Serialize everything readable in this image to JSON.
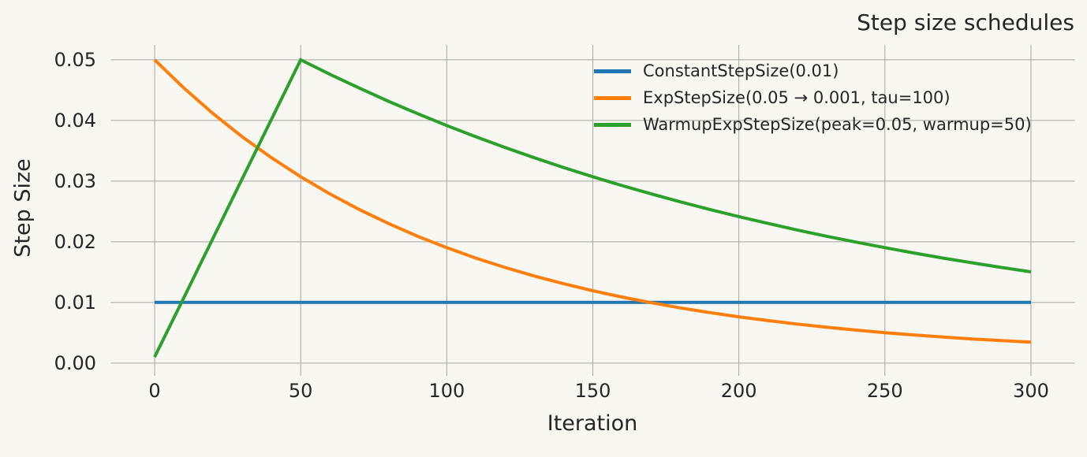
{
  "colors": {
    "background": "#f9f7f1",
    "grid": "#a8a59f",
    "text": "#262626",
    "series_blue": "#1f77b4",
    "series_orange": "#ff7f0e",
    "series_green": "#2ca02c"
  },
  "chart_data": {
    "type": "line",
    "title": "Step size schedules",
    "xlabel": "Iteration",
    "ylabel": "Step Size",
    "xlim": [
      -15,
      315
    ],
    "ylim": [
      -0.00145,
      0.05245
    ],
    "x_ticks": [
      0,
      50,
      100,
      150,
      200,
      250,
      300
    ],
    "x_tick_labels": [
      "0",
      "50",
      "100",
      "150",
      "200",
      "250",
      "300"
    ],
    "y_ticks": [
      0,
      0.01,
      0.02,
      0.03,
      0.04,
      0.05
    ],
    "y_tick_labels": [
      "0.00",
      "0.01",
      "0.02",
      "0.03",
      "0.04",
      "0.05"
    ],
    "grid": true,
    "legend_position": "upper right inside, frameless",
    "x": [
      0,
      10,
      20,
      30,
      40,
      50,
      60,
      70,
      80,
      90,
      100,
      110,
      120,
      130,
      140,
      150,
      160,
      170,
      180,
      190,
      200,
      210,
      220,
      230,
      240,
      250,
      260,
      270,
      280,
      290,
      300
    ],
    "series": [
      {
        "name": "ConstantStepSize(0.01)",
        "color": "#1f77b4",
        "values": [
          0.01,
          0.01,
          0.01,
          0.01,
          0.01,
          0.01,
          0.01,
          0.01,
          0.01,
          0.01,
          0.01,
          0.01,
          0.01,
          0.01,
          0.01,
          0.01,
          0.01,
          0.01,
          0.01,
          0.01,
          0.01,
          0.01,
          0.01,
          0.01,
          0.01,
          0.01,
          0.01,
          0.01,
          0.01,
          0.01,
          0.01
        ]
      },
      {
        "name": "ExpStepSize(0.05 → 0.001, tau=100)",
        "color": "#ff7f0e",
        "values": [
          0.05,
          0.04534,
          0.04112,
          0.0373,
          0.03385,
          0.03072,
          0.02789,
          0.02533,
          0.02302,
          0.02092,
          0.01903,
          0.01731,
          0.01576,
          0.01435,
          0.01308,
          0.01193,
          0.01089,
          0.00995,
          0.0091,
          0.00833,
          0.00763,
          0.007,
          0.00643,
          0.00591,
          0.00545,
          0.00502,
          0.00464,
          0.00429,
          0.00398,
          0.0037,
          0.00344
        ]
      },
      {
        "name": "WarmupExpStepSize(peak=0.05, warmup=50)",
        "color": "#2ca02c",
        "values": [
          0.001,
          0.0108,
          0.0206,
          0.0304,
          0.0402,
          0.05,
          0.04761,
          0.04534,
          0.04317,
          0.04112,
          0.03916,
          0.0373,
          0.03553,
          0.03385,
          0.03224,
          0.03072,
          0.02927,
          0.02789,
          0.02658,
          0.02533,
          0.02415,
          0.02302,
          0.02194,
          0.02092,
          0.01995,
          0.01903,
          0.01815,
          0.01731,
          0.01652,
          0.01576,
          0.01504
        ]
      }
    ]
  }
}
